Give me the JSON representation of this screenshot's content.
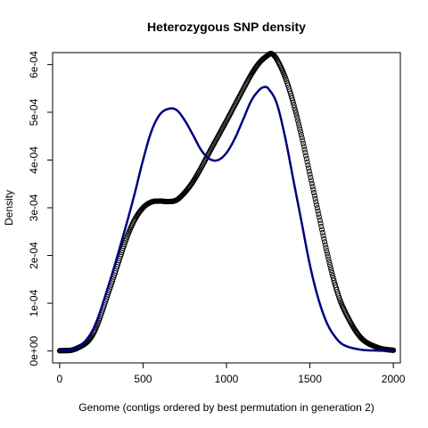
{
  "chart_data": {
    "type": "line",
    "title": "Heterozygous SNP density",
    "xlabel": "Genome (contigs ordered by best permutation in generation 2)",
    "ylabel": "Density",
    "xlim": [
      -42,
      2042
    ],
    "ylim": [
      -2.5e-05,
      0.000625
    ],
    "x_ticks": [
      0,
      500,
      1000,
      1500,
      2000
    ],
    "x_tick_labels": [
      "0",
      "500",
      "1000",
      "1500",
      "2000"
    ],
    "y_ticks": [
      0,
      0.0001,
      0.0002,
      0.0003,
      0.0004,
      0.0005,
      0.0006
    ],
    "y_tick_labels": [
      "0e+00",
      "1e-04",
      "2e-04",
      "3e-04",
      "4e-04",
      "5e-04",
      "6e-04"
    ],
    "grid": false,
    "legend": "none",
    "series": [
      {
        "style": "points",
        "color": "#000000",
        "x": [
          0,
          100,
          200,
          300,
          400,
          450,
          500,
          550,
          600,
          650,
          700,
          750,
          800,
          850,
          900,
          950,
          1000,
          1050,
          1100,
          1150,
          1200,
          1250,
          1270,
          1300,
          1350,
          1400,
          1450,
          1500,
          1550,
          1600,
          1650,
          1700,
          1800,
          1900,
          2000
        ],
        "y": [
          5e-07,
          5e-06,
          3.5e-05,
          0.00013,
          0.000235,
          0.000275,
          0.0003,
          0.000312,
          0.000314,
          0.000313,
          0.000316,
          0.000332,
          0.000355,
          0.000385,
          0.000418,
          0.00045,
          0.000482,
          0.000515,
          0.000548,
          0.00058,
          0.000605,
          0.00062,
          0.000623,
          0.000612,
          0.000575,
          0.00052,
          0.00045,
          0.00037,
          0.00029,
          0.00021,
          0.00014,
          9e-05,
          3e-05,
          8e-06,
          1.5e-06
        ]
      },
      {
        "style": "line",
        "color": "#000080",
        "x": [
          0,
          100,
          200,
          300,
          400,
          450,
          500,
          550,
          600,
          650,
          700,
          750,
          800,
          850,
          900,
          950,
          1000,
          1050,
          1100,
          1150,
          1200,
          1230,
          1250,
          1300,
          1350,
          1400,
          1450,
          1500,
          1550,
          1600,
          1650,
          1700,
          1800,
          1900,
          2000
        ],
        "y": [
          1e-06,
          6e-06,
          4.5e-05,
          0.000145,
          0.000265,
          0.00033,
          0.0004,
          0.00046,
          0.000495,
          0.000507,
          0.000505,
          0.000483,
          0.000452,
          0.00042,
          0.000402,
          0.0004,
          0.000415,
          0.000445,
          0.000485,
          0.000525,
          0.000548,
          0.000553,
          0.00055,
          0.00052,
          0.00045,
          0.00036,
          0.00027,
          0.00018,
          0.00011,
          6e-05,
          3e-05,
          1.3e-05,
          3e-06,
          8e-07,
          2e-07
        ]
      }
    ]
  }
}
